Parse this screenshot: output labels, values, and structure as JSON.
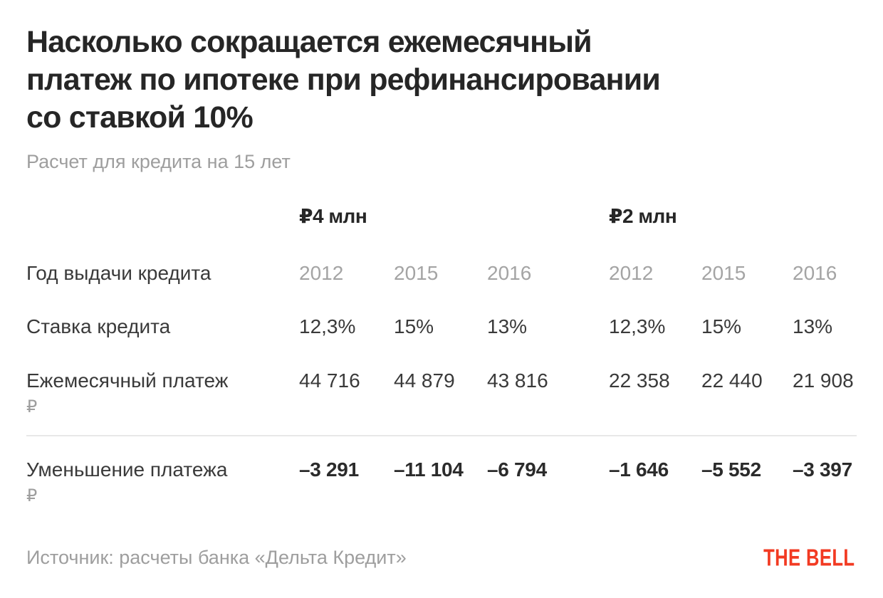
{
  "colors": {
    "accent_red": "#f23a22",
    "title_text": "#262626",
    "body_text": "#3a3a3a",
    "muted_text": "#9e9e9e",
    "divider": "#e8e8e8"
  },
  "header": {
    "title_lines": [
      "Насколько сокращается ежемесячный",
      "платеж по ипотеке при рефинансировании",
      "со ставкой 10%"
    ]
  },
  "footer": {
    "logo": "THE BELL"
  },
  "chart_data": {
    "type": "table",
    "title": "Насколько сокращается ежемесячный платеж по ипотеке при рефинансировании со ставкой 10%",
    "subtitle": "Расчет для кредита на 15 лет",
    "column_groups": [
      "₽4 млн",
      "₽2 млн"
    ],
    "years": [
      "2012",
      "2015",
      "2016",
      "2012",
      "2015",
      "2016"
    ],
    "rows": [
      {
        "label": "Год выдачи кредита",
        "unit": "",
        "values": [
          "2012",
          "2015",
          "2016",
          "2012",
          "2015",
          "2016"
        ],
        "emphasis": "muted"
      },
      {
        "label": "Ставка кредита",
        "unit": "",
        "values": [
          "12,3%",
          "15%",
          "13%",
          "12,3%",
          "15%",
          "13%"
        ],
        "emphasis": "normal"
      },
      {
        "label": "Ежемесячный платеж",
        "unit": "₽",
        "values": [
          "44 716",
          "44 879",
          "43 816",
          "22 358",
          "22 440",
          "21 908"
        ],
        "emphasis": "normal"
      },
      {
        "label": "Уменьшение платежа",
        "unit": "₽",
        "values": [
          "–3 291",
          "–11 104",
          "–6 794",
          "–1 646",
          "–5 552",
          "–3 397"
        ],
        "emphasis": "bold"
      }
    ],
    "source": "Источник: расчеты банка «Дельта Кредит»"
  }
}
